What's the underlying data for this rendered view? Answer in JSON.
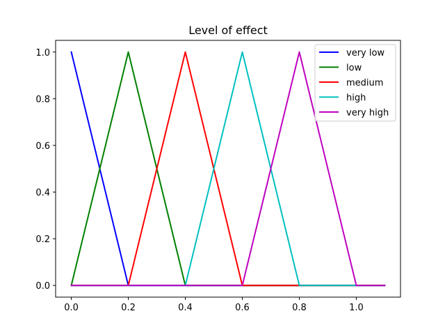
{
  "chart_data": {
    "type": "line",
    "title": "Level of effect",
    "xlabel": "",
    "ylabel": "",
    "xlim": [
      -0.055,
      1.155
    ],
    "ylim": [
      -0.05,
      1.05
    ],
    "xticks": [
      0.0,
      0.2,
      0.4,
      0.6,
      0.8,
      1.0
    ],
    "yticks": [
      0.0,
      0.2,
      0.4,
      0.6,
      0.8,
      1.0
    ],
    "xtick_labels": [
      "0.0",
      "0.2",
      "0.4",
      "0.6",
      "0.8",
      "1.0"
    ],
    "ytick_labels": [
      "0.0",
      "0.2",
      "0.4",
      "0.6",
      "0.8",
      "1.0"
    ],
    "grid": false,
    "legend_position": "top-right",
    "series": [
      {
        "name": "very low",
        "color": "#0000ff",
        "x": [
          0.0,
          0.2,
          1.1
        ],
        "y": [
          1,
          0,
          0
        ]
      },
      {
        "name": "low",
        "color": "#008000",
        "x": [
          0.0,
          0.2,
          0.4,
          1.1
        ],
        "y": [
          0,
          1,
          0,
          0
        ]
      },
      {
        "name": "medium",
        "color": "#ff0000",
        "x": [
          0.0,
          0.2,
          0.4,
          0.6,
          1.1
        ],
        "y": [
          0,
          0,
          1,
          0,
          0
        ]
      },
      {
        "name": "high",
        "color": "#00bfbf",
        "x": [
          0.0,
          0.4,
          0.6,
          0.8,
          1.1
        ],
        "y": [
          0,
          0,
          1,
          0,
          0
        ]
      },
      {
        "name": "very high",
        "color": "#bf00bf",
        "x": [
          0.0,
          0.6,
          0.8,
          1.0,
          1.1
        ],
        "y": [
          0,
          0,
          1,
          0,
          0
        ]
      }
    ]
  }
}
